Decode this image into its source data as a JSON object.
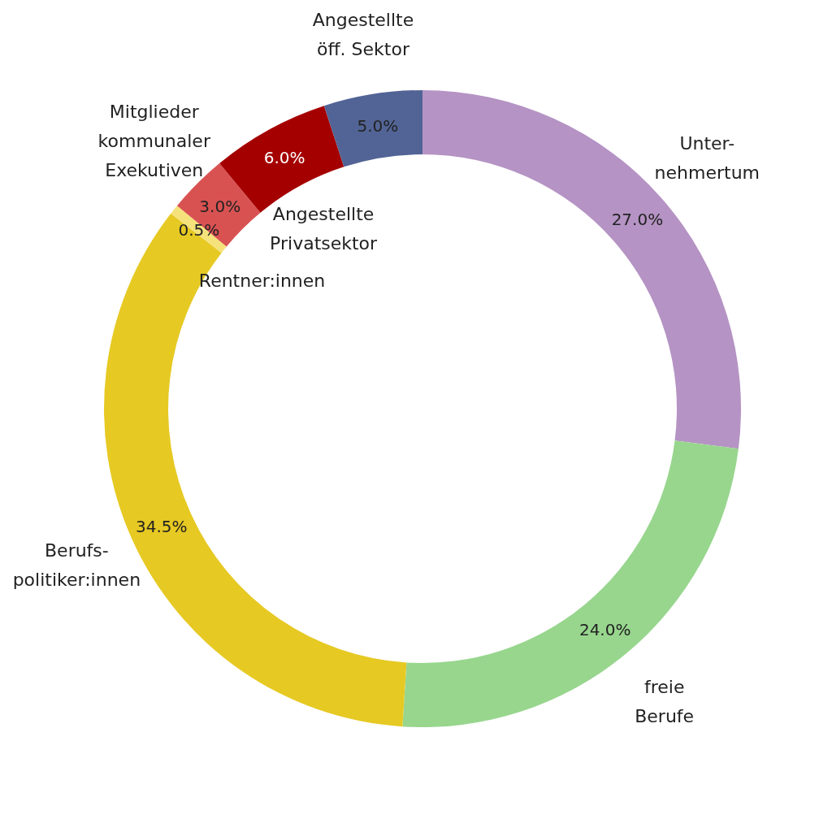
{
  "chart_data": {
    "type": "donut",
    "categories": [
      "Unter-\nnehmertum",
      "freie\nBerufe",
      "Berufs-\npolitiker:innen",
      "Rentner:innen",
      "Mitglieder\nkommunaler\nExekutiven",
      "Angestellte\nPrivatsektor",
      "Angestellte\nöff. Sektor"
    ],
    "values": [
      27.0,
      24.0,
      34.5,
      0.5,
      3.0,
      6.0,
      5.0
    ],
    "colors": [
      "#b593c4",
      "#98d68e",
      "#e6c923",
      "#f5e27a",
      "#d95252",
      "#a50000",
      "#526496"
    ],
    "value_labels": [
      "27.0%",
      "24.0%",
      "34.5%",
      "0.5%",
      "3.0%",
      "6.0%",
      "5.0%"
    ]
  }
}
